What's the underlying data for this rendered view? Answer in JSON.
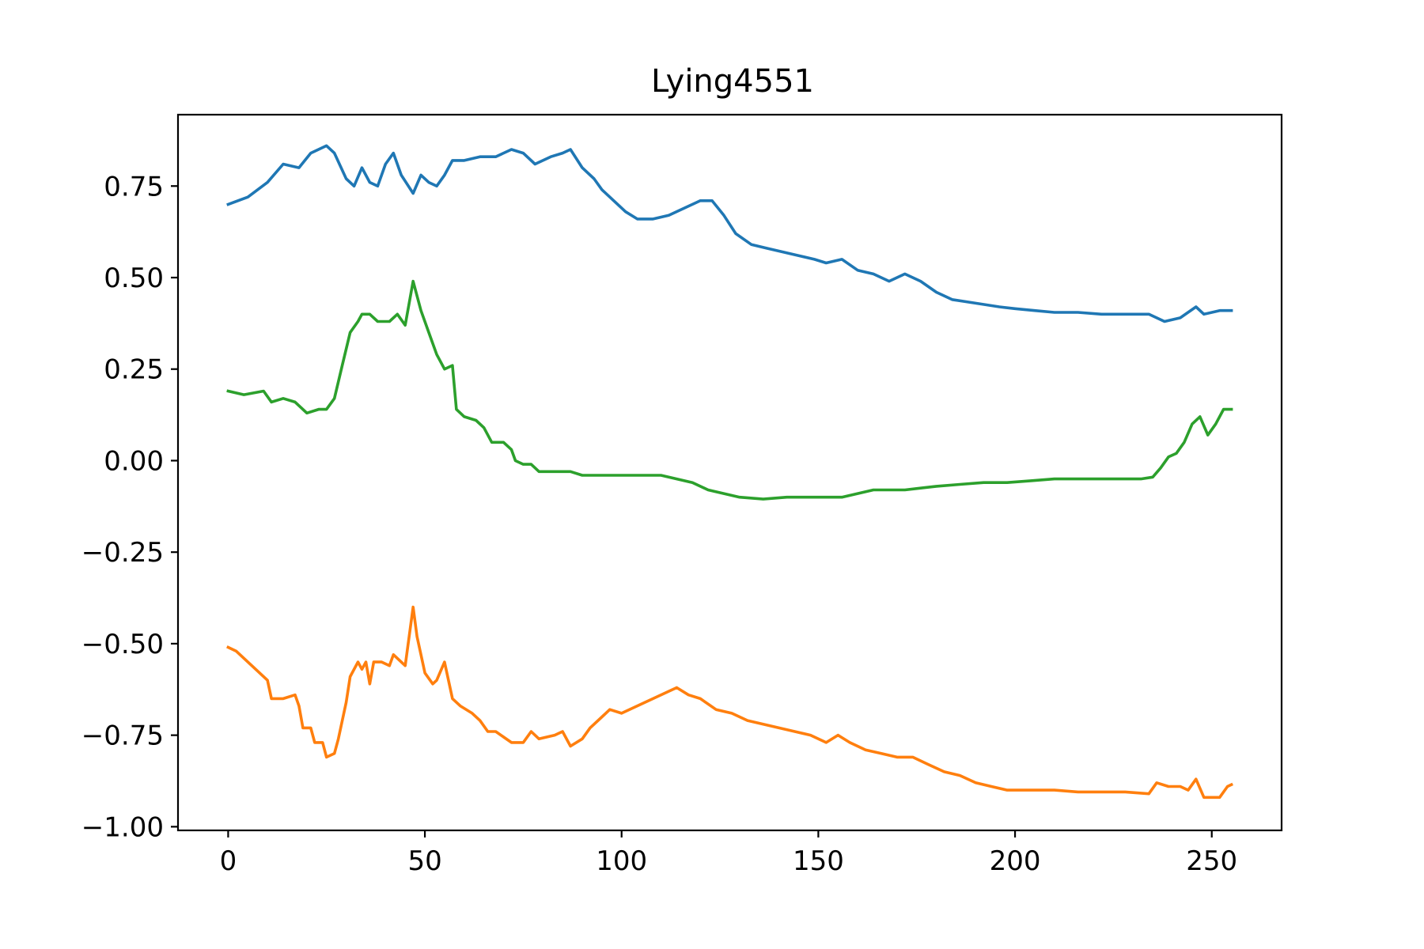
{
  "chart_data": {
    "type": "line",
    "title": "Lying4551",
    "xlabel": "",
    "ylabel": "",
    "xlim": [
      -12.75,
      267.75
    ],
    "ylim": [
      -1.01,
      0.945
    ],
    "xticks": [
      0,
      50,
      100,
      150,
      200,
      250
    ],
    "xtick_labels": [
      "0",
      "50",
      "100",
      "150",
      "200",
      "250"
    ],
    "yticks": [
      -1.0,
      -0.75,
      -0.5,
      -0.25,
      0.0,
      0.25,
      0.5,
      0.75
    ],
    "ytick_labels": [
      "−1.00",
      "−0.75",
      "−0.50",
      "−0.25",
      "0.00",
      "0.25",
      "0.50",
      "0.75"
    ],
    "grid": false,
    "series": [
      {
        "color": "#1f77b4",
        "points": [
          [
            0,
            0.7
          ],
          [
            5,
            0.72
          ],
          [
            10,
            0.76
          ],
          [
            14,
            0.81
          ],
          [
            18,
            0.8
          ],
          [
            21,
            0.84
          ],
          [
            25,
            0.86
          ],
          [
            27,
            0.84
          ],
          [
            30,
            0.77
          ],
          [
            32,
            0.75
          ],
          [
            34,
            0.8
          ],
          [
            36,
            0.76
          ],
          [
            38,
            0.75
          ],
          [
            40,
            0.81
          ],
          [
            42,
            0.84
          ],
          [
            44,
            0.78
          ],
          [
            47,
            0.73
          ],
          [
            49,
            0.78
          ],
          [
            51,
            0.76
          ],
          [
            53,
            0.75
          ],
          [
            55,
            0.78
          ],
          [
            57,
            0.82
          ],
          [
            60,
            0.82
          ],
          [
            64,
            0.83
          ],
          [
            68,
            0.83
          ],
          [
            72,
            0.85
          ],
          [
            75,
            0.84
          ],
          [
            78,
            0.81
          ],
          [
            82,
            0.83
          ],
          [
            85,
            0.84
          ],
          [
            87,
            0.85
          ],
          [
            90,
            0.8
          ],
          [
            93,
            0.77
          ],
          [
            95,
            0.74
          ],
          [
            98,
            0.71
          ],
          [
            101,
            0.68
          ],
          [
            104,
            0.66
          ],
          [
            108,
            0.66
          ],
          [
            112,
            0.67
          ],
          [
            116,
            0.69
          ],
          [
            120,
            0.71
          ],
          [
            123,
            0.71
          ],
          [
            126,
            0.67
          ],
          [
            129,
            0.62
          ],
          [
            133,
            0.59
          ],
          [
            137,
            0.58
          ],
          [
            141,
            0.57
          ],
          [
            145,
            0.56
          ],
          [
            149,
            0.55
          ],
          [
            152,
            0.54
          ],
          [
            156,
            0.55
          ],
          [
            160,
            0.52
          ],
          [
            164,
            0.51
          ],
          [
            168,
            0.49
          ],
          [
            172,
            0.51
          ],
          [
            176,
            0.49
          ],
          [
            180,
            0.46
          ],
          [
            184,
            0.44
          ],
          [
            190,
            0.43
          ],
          [
            196,
            0.42
          ],
          [
            200,
            0.415
          ],
          [
            205,
            0.41
          ],
          [
            210,
            0.405
          ],
          [
            216,
            0.405
          ],
          [
            222,
            0.4
          ],
          [
            228,
            0.4
          ],
          [
            234,
            0.4
          ],
          [
            236,
            0.39
          ],
          [
            238,
            0.38
          ],
          [
            242,
            0.39
          ],
          [
            246,
            0.42
          ],
          [
            248,
            0.4
          ],
          [
            252,
            0.41
          ],
          [
            255,
            0.41
          ]
        ]
      },
      {
        "color": "#2ca02c",
        "points": [
          [
            0,
            0.19
          ],
          [
            4,
            0.18
          ],
          [
            9,
            0.19
          ],
          [
            11,
            0.16
          ],
          [
            14,
            0.17
          ],
          [
            17,
            0.16
          ],
          [
            20,
            0.13
          ],
          [
            23,
            0.14
          ],
          [
            25,
            0.14
          ],
          [
            27,
            0.17
          ],
          [
            29,
            0.26
          ],
          [
            31,
            0.35
          ],
          [
            33,
            0.38
          ],
          [
            34,
            0.4
          ],
          [
            36,
            0.4
          ],
          [
            38,
            0.38
          ],
          [
            41,
            0.38
          ],
          [
            43,
            0.4
          ],
          [
            45,
            0.37
          ],
          [
            47,
            0.49
          ],
          [
            49,
            0.41
          ],
          [
            51,
            0.35
          ],
          [
            53,
            0.29
          ],
          [
            55,
            0.25
          ],
          [
            57,
            0.26
          ],
          [
            58,
            0.14
          ],
          [
            60,
            0.12
          ],
          [
            63,
            0.11
          ],
          [
            65,
            0.09
          ],
          [
            67,
            0.05
          ],
          [
            70,
            0.05
          ],
          [
            72,
            0.03
          ],
          [
            73,
            0.0
          ],
          [
            75,
            -0.01
          ],
          [
            77,
            -0.01
          ],
          [
            79,
            -0.03
          ],
          [
            83,
            -0.03
          ],
          [
            87,
            -0.03
          ],
          [
            90,
            -0.04
          ],
          [
            95,
            -0.04
          ],
          [
            100,
            -0.04
          ],
          [
            105,
            -0.04
          ],
          [
            110,
            -0.04
          ],
          [
            114,
            -0.05
          ],
          [
            118,
            -0.06
          ],
          [
            122,
            -0.08
          ],
          [
            126,
            -0.09
          ],
          [
            130,
            -0.1
          ],
          [
            136,
            -0.105
          ],
          [
            142,
            -0.1
          ],
          [
            148,
            -0.1
          ],
          [
            152,
            -0.1
          ],
          [
            156,
            -0.1
          ],
          [
            160,
            -0.09
          ],
          [
            164,
            -0.08
          ],
          [
            168,
            -0.08
          ],
          [
            172,
            -0.08
          ],
          [
            176,
            -0.075
          ],
          [
            180,
            -0.07
          ],
          [
            186,
            -0.065
          ],
          [
            192,
            -0.06
          ],
          [
            198,
            -0.06
          ],
          [
            204,
            -0.055
          ],
          [
            210,
            -0.05
          ],
          [
            216,
            -0.05
          ],
          [
            222,
            -0.05
          ],
          [
            228,
            -0.05
          ],
          [
            232,
            -0.05
          ],
          [
            235,
            -0.045
          ],
          [
            237,
            -0.02
          ],
          [
            239,
            0.01
          ],
          [
            241,
            0.02
          ],
          [
            243,
            0.05
          ],
          [
            245,
            0.1
          ],
          [
            247,
            0.12
          ],
          [
            249,
            0.07
          ],
          [
            251,
            0.1
          ],
          [
            253,
            0.14
          ],
          [
            255,
            0.14
          ]
        ]
      },
      {
        "color": "#ff7f0e",
        "points": [
          [
            0,
            -0.51
          ],
          [
            2,
            -0.52
          ],
          [
            5,
            -0.55
          ],
          [
            8,
            -0.58
          ],
          [
            10,
            -0.6
          ],
          [
            11,
            -0.65
          ],
          [
            14,
            -0.65
          ],
          [
            17,
            -0.64
          ],
          [
            18,
            -0.67
          ],
          [
            19,
            -0.73
          ],
          [
            21,
            -0.73
          ],
          [
            22,
            -0.77
          ],
          [
            24,
            -0.77
          ],
          [
            25,
            -0.81
          ],
          [
            27,
            -0.8
          ],
          [
            28,
            -0.76
          ],
          [
            30,
            -0.66
          ],
          [
            31,
            -0.59
          ],
          [
            33,
            -0.55
          ],
          [
            34,
            -0.57
          ],
          [
            35,
            -0.55
          ],
          [
            36,
            -0.61
          ],
          [
            37,
            -0.55
          ],
          [
            39,
            -0.55
          ],
          [
            41,
            -0.56
          ],
          [
            42,
            -0.53
          ],
          [
            44,
            -0.55
          ],
          [
            45,
            -0.56
          ],
          [
            46,
            -0.48
          ],
          [
            47,
            -0.4
          ],
          [
            48,
            -0.48
          ],
          [
            50,
            -0.58
          ],
          [
            52,
            -0.61
          ],
          [
            53,
            -0.6
          ],
          [
            55,
            -0.55
          ],
          [
            57,
            -0.65
          ],
          [
            59,
            -0.67
          ],
          [
            62,
            -0.69
          ],
          [
            64,
            -0.71
          ],
          [
            66,
            -0.74
          ],
          [
            68,
            -0.74
          ],
          [
            72,
            -0.77
          ],
          [
            75,
            -0.77
          ],
          [
            77,
            -0.74
          ],
          [
            79,
            -0.76
          ],
          [
            83,
            -0.75
          ],
          [
            85,
            -0.74
          ],
          [
            87,
            -0.78
          ],
          [
            90,
            -0.76
          ],
          [
            92,
            -0.73
          ],
          [
            95,
            -0.7
          ],
          [
            97,
            -0.68
          ],
          [
            100,
            -0.69
          ],
          [
            104,
            -0.67
          ],
          [
            108,
            -0.65
          ],
          [
            112,
            -0.63
          ],
          [
            114,
            -0.62
          ],
          [
            117,
            -0.64
          ],
          [
            120,
            -0.65
          ],
          [
            124,
            -0.68
          ],
          [
            128,
            -0.69
          ],
          [
            132,
            -0.71
          ],
          [
            136,
            -0.72
          ],
          [
            140,
            -0.73
          ],
          [
            144,
            -0.74
          ],
          [
            148,
            -0.75
          ],
          [
            152,
            -0.77
          ],
          [
            155,
            -0.75
          ],
          [
            158,
            -0.77
          ],
          [
            162,
            -0.79
          ],
          [
            166,
            -0.8
          ],
          [
            170,
            -0.81
          ],
          [
            174,
            -0.81
          ],
          [
            178,
            -0.83
          ],
          [
            182,
            -0.85
          ],
          [
            186,
            -0.86
          ],
          [
            190,
            -0.88
          ],
          [
            194,
            -0.89
          ],
          [
            198,
            -0.9
          ],
          [
            204,
            -0.9
          ],
          [
            210,
            -0.9
          ],
          [
            216,
            -0.905
          ],
          [
            222,
            -0.905
          ],
          [
            228,
            -0.905
          ],
          [
            234,
            -0.91
          ],
          [
            236,
            -0.88
          ],
          [
            239,
            -0.89
          ],
          [
            242,
            -0.89
          ],
          [
            244,
            -0.9
          ],
          [
            246,
            -0.87
          ],
          [
            248,
            -0.92
          ],
          [
            250,
            -0.92
          ],
          [
            252,
            -0.92
          ],
          [
            254,
            -0.89
          ],
          [
            255,
            -0.885
          ]
        ]
      }
    ]
  }
}
